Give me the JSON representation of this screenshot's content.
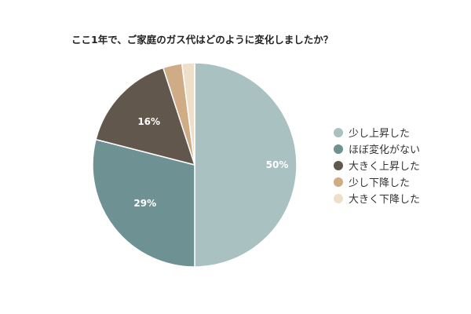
{
  "chart_data": {
    "type": "pie",
    "title": "ここ1年で、ご家庭のガス代はどのように変化しましたか？",
    "categories": [
      "少し上昇した",
      "ほぼ変化がない",
      "大きく上昇した",
      "少し下降した",
      "大きく下降した"
    ],
    "values": [
      50,
      29,
      16,
      3,
      2
    ],
    "value_labels": [
      "50%",
      "29%",
      "16%",
      "",
      ""
    ],
    "colors": [
      "#aac1c1",
      "#6e9194",
      "#62574d",
      "#cfab86",
      "#eedfc8"
    ],
    "legend_position": "right",
    "start_angle_deg": 0,
    "direction": "clockwise",
    "label_color": "#ffffff",
    "slice_border_color": "#ffffff"
  }
}
